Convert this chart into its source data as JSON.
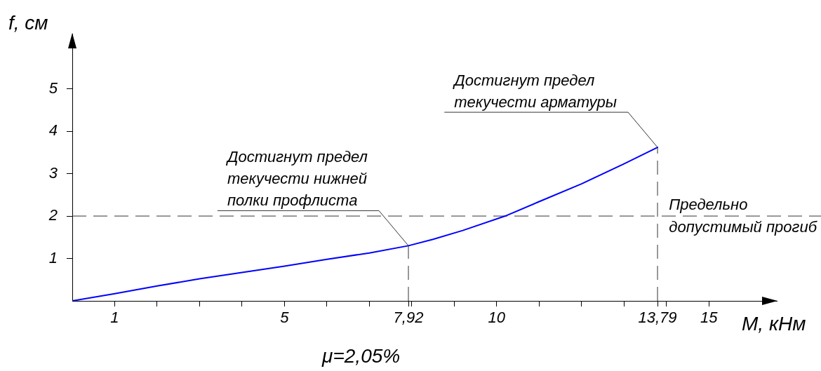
{
  "chart_data": {
    "type": "line",
    "xlabel": "M, кНм",
    "ylabel": "f, см",
    "x": [
      0,
      1,
      2,
      3,
      4,
      5,
      6,
      7,
      7.92,
      8.5,
      9.2,
      10.2,
      11,
      12,
      13,
      13.79
    ],
    "series": [
      {
        "color": "#0000ff",
        "values": [
          0,
          0.17,
          0.35,
          0.52,
          0.67,
          0.82,
          0.98,
          1.13,
          1.3,
          1.45,
          1.66,
          2.0,
          2.34,
          2.76,
          3.23,
          3.62
        ]
      }
    ],
    "xlim": [
      0,
      16.6
    ],
    "ylim": [
      0,
      6.3
    ],
    "xticks": [
      1,
      {
        "value": 2,
        "label": null
      },
      {
        "value": 3,
        "label": null
      },
      {
        "value": 4,
        "label": null
      },
      5,
      {
        "value": 6,
        "label": null
      },
      {
        "value": 7,
        "label": null
      },
      {
        "value": 7.92,
        "label": "7,92"
      },
      {
        "value": 8,
        "label": null
      },
      {
        "value": 9,
        "label": null
      },
      10,
      {
        "value": 11,
        "label": null
      },
      {
        "value": 12,
        "label": null
      },
      {
        "value": 13,
        "label": null
      },
      {
        "value": 13.79,
        "label": "13,79"
      },
      {
        "value": 14,
        "label": null
      },
      15
    ],
    "yticks": [
      1,
      2,
      3,
      4,
      5
    ],
    "grid": false,
    "legend": false,
    "marker": "none",
    "line_style": "solid",
    "ref_lines": [
      {
        "axis": "y",
        "value": 2,
        "label": "Предельно\nдопустимый прогиб",
        "color": "#333333",
        "line_style": "dashed"
      },
      {
        "axis": "x",
        "value": 7.92,
        "color": "#333333",
        "line_style": "dashed"
      },
      {
        "axis": "x",
        "value": 13.79,
        "color": "#333333",
        "line_style": "dashed"
      }
    ],
    "annotations": [
      {
        "text": "Достигнут предел\nтекучести нижней\nполки профлиста",
        "x": 7.92,
        "y": 1.3
      },
      {
        "text": "Достигнут предел\nтекучести арматуры",
        "x": 13.79,
        "y": 3.62
      },
      "μ=2,05%"
    ]
  }
}
